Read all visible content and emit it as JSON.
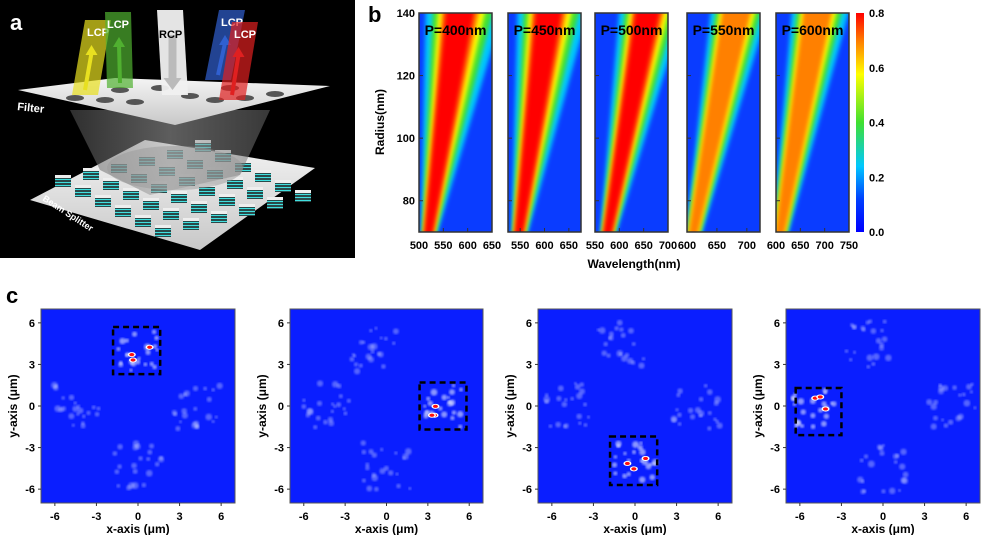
{
  "panel_a": {
    "label": "a",
    "beams": [
      "LCP",
      "LCP",
      "RCP",
      "LCP",
      "LCP"
    ],
    "filter_label": "Filter",
    "splitter_label": "Beam Splitter",
    "beam_colors": [
      "#e8e020",
      "#50b030",
      "#f0f0f0",
      "#3060d0",
      "#e02020"
    ]
  },
  "panel_b_label": "b",
  "panel_c_label": "c",
  "chart_data": [
    {
      "type": "heatmap",
      "panel": "b",
      "ylabel": "Radius(nm)",
      "xlabel": "Wavelength(nm)",
      "ylim": [
        70,
        140
      ],
      "yticks": [
        80,
        100,
        120,
        140
      ],
      "colorbar": {
        "range": [
          0,
          0.8
        ],
        "ticks": [
          "0.0",
          "0.2",
          "0.4",
          "0.6",
          "0.8"
        ],
        "colormap": "jet"
      },
      "subplots": [
        {
          "title": "P=400nm",
          "xlim": [
            500,
            650
          ],
          "xticks": [
            500,
            550,
            600,
            650
          ],
          "resonance_nm_at_radius_70_140": [
            517,
            580
          ],
          "peak": 1.0
        },
        {
          "title": "P=450nm",
          "xlim": [
            525,
            675
          ],
          "xticks": [
            550,
            600,
            650
          ],
          "resonance_nm_at_radius_70_140": [
            545,
            605
          ],
          "peak": 0.9
        },
        {
          "title": "P=500nm",
          "xlim": [
            550,
            700
          ],
          "xticks": [
            550,
            600,
            650,
            700
          ],
          "resonance_nm_at_radius_70_140": [
            573,
            655
          ],
          "peak": 0.8
        },
        {
          "title": "P=550nm",
          "xlim": [
            600,
            722
          ],
          "xticks": [
            600,
            650,
            700
          ],
          "resonance_nm_at_radius_70_140": [
            608,
            680
          ],
          "peak": 0.7
        },
        {
          "title": "P=600nm",
          "xlim": [
            600,
            750
          ],
          "xticks": [
            600,
            650,
            700,
            750
          ],
          "resonance_nm_at_radius_70_140": [
            605,
            682
          ],
          "peak": 0.7
        }
      ]
    },
    {
      "type": "heatmap",
      "panel": "c",
      "xlabel": "x-axis (μm)",
      "ylabel": "y-axis (μm)",
      "xlim": [
        -7,
        7
      ],
      "ylim": [
        -7,
        7
      ],
      "ticks": [
        -6,
        -3,
        0,
        3,
        6
      ],
      "subplots": [
        {
          "focus": [
            0,
            4
          ],
          "highlight_box": {
            "x": [
              -1.8,
              1.6
            ],
            "y": [
              2.3,
              5.7
            ]
          },
          "others": [
            [
              -4.5,
              0
            ],
            [
              4.3,
              0
            ],
            [
              0,
              -4.3
            ]
          ]
        },
        {
          "focus": [
            4,
            0
          ],
          "highlight_box": {
            "x": [
              2.4,
              5.8
            ],
            "y": [
              -1.7,
              1.7
            ]
          },
          "others": [
            [
              -4.3,
              0
            ],
            [
              -1,
              4.2
            ],
            [
              0,
              -4.3
            ]
          ]
        },
        {
          "focus": [
            0,
            -4
          ],
          "highlight_box": {
            "x": [
              -1.8,
              1.6
            ],
            "y": [
              -5.7,
              -2.2
            ]
          },
          "others": [
            [
              -5,
              0
            ],
            [
              4.5,
              0
            ],
            [
              -1,
              4.5
            ]
          ]
        },
        {
          "focus": [
            -5,
            -0.3
          ],
          "highlight_box": {
            "x": [
              -6.3,
              -3.0
            ],
            "y": [
              -2.1,
              1.3
            ]
          },
          "others": [
            [
              0,
              -4.5
            ],
            [
              5,
              0
            ],
            [
              -1,
              4.5
            ]
          ]
        }
      ]
    }
  ]
}
